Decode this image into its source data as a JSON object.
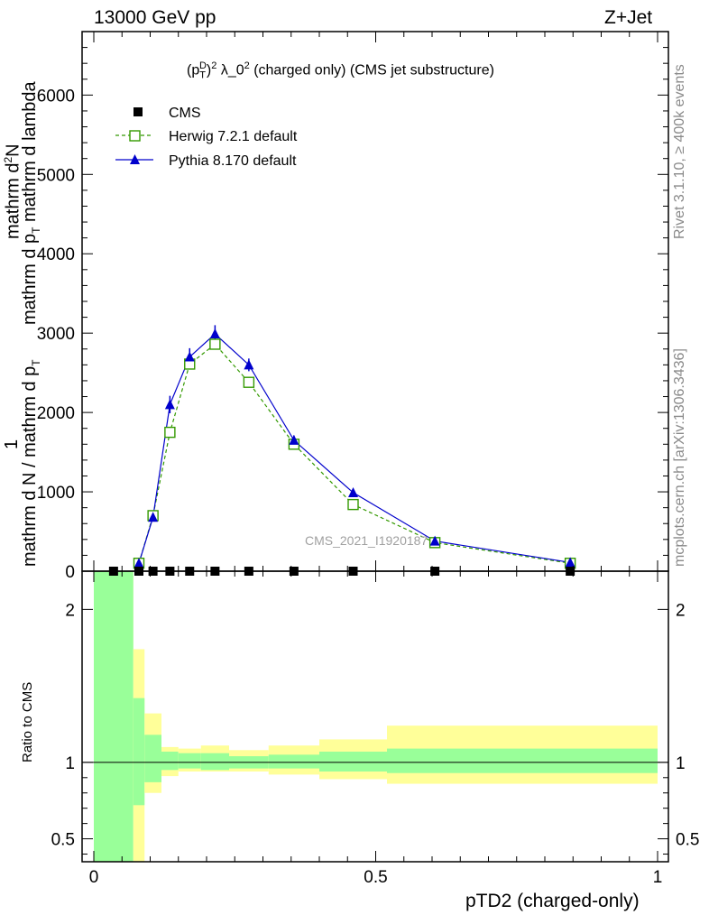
{
  "header": {
    "left": "13000 GeV pp",
    "right": "Z+Jet"
  },
  "side_labels": {
    "rivet": "Rivet 3.1.10, ≥ 400k events",
    "mcplots": "mcplots.cern.ch [arXiv:1306.3436]"
  },
  "watermark": "CMS_2021_I1920187",
  "colors": {
    "herwig": "#339900",
    "pythia": "#0000cc",
    "band_inner": "#99ff99",
    "band_outer": "#ffff99"
  },
  "chart_data": [
    {
      "type": "line",
      "title": "(p_T^D)^2 λ_0^2 (charged only) (CMS jet substructure)",
      "title_parts": {
        "main_prefix": "(p",
        "sub_T": "T",
        "sup_D": "D",
        "close_paren": ")",
        "sup_2": "2",
        "lambda": " λ_0",
        "sup_2b": "2",
        "rest": " (charged only) (CMS jet substructure)"
      },
      "ylabel": "1 / mathrm d N / mathrm d p_T  mathrm d^2N / mathrm d p_T mathrm d lambda",
      "ylabel_parts": {
        "numerator_one": "1",
        "denominator": "mathrm d N / mathrm d p",
        "denominator_sub": "T",
        "right_numerator": "mathrm d",
        "right_numerator_sup": "2",
        "right_numerator_end": "N",
        "right_denominator": "mathrm d p",
        "right_denominator_sub": "T",
        "right_denominator_end": " mathrm d lambda"
      },
      "xlim": [
        -0.02,
        1.02
      ],
      "ylim": [
        0,
        6800
      ],
      "yticks": [
        0,
        1000,
        2000,
        3000,
        4000,
        5000,
        6000
      ],
      "legend_position": "top-left",
      "series": [
        {
          "name": "CMS",
          "style": "black-square",
          "x": [
            0.035,
            0.08,
            0.105,
            0.135,
            0.17,
            0.215,
            0.275,
            0.355,
            0.46,
            0.605,
            0.845
          ],
          "y": [
            0,
            0,
            0,
            0,
            0,
            0,
            0,
            0,
            0,
            0,
            0
          ]
        },
        {
          "name": "Herwig 7.2.1 default",
          "style": "green-open-square-dashed",
          "x": [
            0.08,
            0.105,
            0.135,
            0.17,
            0.215,
            0.275,
            0.355,
            0.46,
            0.605,
            0.845
          ],
          "y": [
            100,
            700,
            1750,
            2610,
            2860,
            2380,
            1600,
            840,
            360,
            100
          ]
        },
        {
          "name": "Pythia 8.170 default",
          "style": "blue-filled-triangle-solid",
          "x": [
            0.08,
            0.105,
            0.135,
            0.17,
            0.215,
            0.275,
            0.355,
            0.46,
            0.605,
            0.845
          ],
          "y": [
            100,
            680,
            2100,
            2700,
            2990,
            2600,
            1650,
            990,
            380,
            110
          ],
          "yerr": [
            20,
            50,
            110,
            110,
            110,
            80,
            60,
            30,
            20,
            10
          ]
        }
      ]
    },
    {
      "type": "area",
      "ylabel": "Ratio to CMS",
      "xlabel": "pTD2 (charged-only)",
      "xlim": [
        -0.02,
        1.02
      ],
      "ylim": [
        0.35,
        2.25
      ],
      "yticks": [
        0.5,
        1,
        2
      ],
      "ytick_labels": [
        "0.5",
        "1",
        "2"
      ],
      "xticks": [
        0,
        0.5,
        1
      ],
      "xtick_labels": [
        "0",
        "0.5",
        "1"
      ],
      "reference_line": 1,
      "bin_edges": [
        0.0,
        0.07,
        0.09,
        0.12,
        0.15,
        0.19,
        0.24,
        0.31,
        0.4,
        0.52,
        1.0
      ],
      "inner_band_low": [
        0.3,
        0.72,
        0.87,
        0.95,
        0.96,
        0.95,
        0.96,
        0.96,
        0.94,
        0.93
      ],
      "inner_band_high": [
        2.3,
        1.42,
        1.18,
        1.07,
        1.06,
        1.06,
        1.04,
        1.05,
        1.07,
        1.09
      ],
      "outer_band_low": [
        0.3,
        0.3,
        0.8,
        0.91,
        0.94,
        0.94,
        0.94,
        0.92,
        0.89,
        0.86
      ],
      "outer_band_high": [
        2.3,
        1.74,
        1.32,
        1.1,
        1.09,
        1.11,
        1.08,
        1.11,
        1.15,
        1.24
      ]
    }
  ]
}
